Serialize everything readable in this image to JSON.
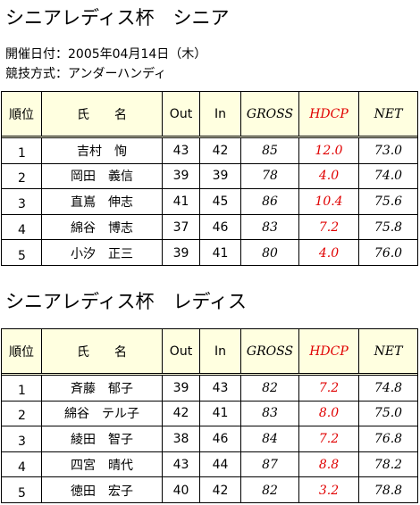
{
  "title1": "シニアレディス杯　シニア",
  "date": "開催日付：2005年04月14日（木）",
  "method": "競技方式：アンダーハンディ",
  "title2": "シニアレディス杯　レディス",
  "columns": [
    "順位",
    "氏　　名",
    "Out",
    "In",
    "GROSS",
    "HDCP",
    "NET"
  ],
  "table1": {
    "rows": [
      [
        "1",
        "吉村　恂",
        "43",
        "42",
        "85",
        "12.0",
        "73.0"
      ],
      [
        "2",
        "岡田　義信",
        "39",
        "39",
        "78",
        "4.0",
        "74.0"
      ],
      [
        "3",
        "直嶌　伸志",
        "41",
        "45",
        "86",
        "10.4",
        "75.6"
      ],
      [
        "4",
        "綿谷　博志",
        "37",
        "46",
        "83",
        "7.2",
        "75.8"
      ],
      [
        "5",
        "小汐　正三",
        "39",
        "41",
        "80",
        "4.0",
        "76.0"
      ]
    ]
  },
  "table2": {
    "rows": [
      [
        "1",
        "斉藤　郁子",
        "39",
        "43",
        "82",
        "7.2",
        "74.8"
      ],
      [
        "2",
        "綿谷　テル子",
        "42",
        "41",
        "83",
        "8.0",
        "75.0"
      ],
      [
        "3",
        "綾田　智子",
        "38",
        "46",
        "84",
        "7.2",
        "76.8"
      ],
      [
        "4",
        "四宮　晴代",
        "43",
        "44",
        "87",
        "8.8",
        "78.2"
      ],
      [
        "5",
        "徳田　宏子",
        "40",
        "42",
        "82",
        "3.2",
        "78.8"
      ]
    ]
  }
}
